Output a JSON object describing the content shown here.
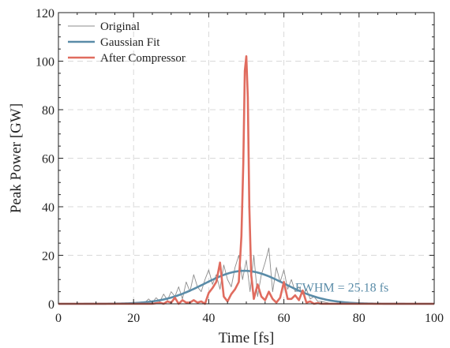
{
  "chart_data": {
    "type": "line",
    "xlabel": "Time [fs]",
    "ylabel": "Peak Power [GW]",
    "xlim": [
      0,
      100
    ],
    "ylim": [
      0,
      120
    ],
    "xticks": [
      "0",
      "20",
      "40",
      "60",
      "80",
      "100"
    ],
    "yticks": [
      "0",
      "20",
      "40",
      "60",
      "80",
      "100",
      "120"
    ],
    "grid": true,
    "legend_position": "top-left",
    "annotation": {
      "text": "FWHM = 25.18 fs",
      "x": 63,
      "y": 5,
      "color": "#5a8ca8"
    },
    "series": [
      {
        "name": "Original",
        "color": "#8c8c8c",
        "style": "thin",
        "x": [
          0,
          20,
          22,
          23,
          24,
          25,
          26,
          27,
          28,
          29,
          30,
          31,
          32,
          33,
          34,
          35,
          36,
          37,
          38,
          39,
          40,
          41,
          42,
          43,
          44,
          45,
          46,
          47,
          48,
          49,
          50,
          51,
          52,
          53,
          54,
          55,
          56,
          57,
          58,
          59,
          60,
          61,
          62,
          63,
          64,
          65,
          66,
          67,
          68,
          69,
          70,
          72,
          75,
          100
        ],
        "y": [
          0,
          0,
          0.2,
          0.5,
          2,
          0.5,
          2.5,
          1,
          4,
          1.5,
          5,
          3,
          7,
          2,
          9,
          5,
          12,
          7,
          5,
          10,
          14,
          8,
          12,
          6,
          16,
          10,
          7,
          15,
          20,
          10,
          18,
          5,
          20,
          3,
          12,
          17,
          23,
          5,
          15,
          9,
          14,
          6,
          10,
          5,
          7,
          4,
          6,
          2,
          3,
          1,
          1,
          0.3,
          0,
          0
        ]
      },
      {
        "name": "Gaussian Fit",
        "color": "#5a8ca8",
        "style": "thick",
        "gaussian": {
          "amplitude": 13.6,
          "center": 49.5,
          "fwhm": 25.18
        }
      },
      {
        "name": "After Compressor",
        "color": "#e06c5f",
        "style": "thick",
        "x": [
          0,
          25,
          27,
          28,
          29,
          30,
          31,
          32,
          33,
          34,
          35,
          36,
          37,
          38,
          39,
          40,
          41,
          42,
          43,
          44,
          45,
          46,
          47,
          48,
          48.7,
          49.2,
          49.6,
          50,
          50.4,
          50.8,
          51.3,
          52,
          53,
          54,
          55,
          56,
          57,
          58,
          59,
          60,
          61,
          62,
          63,
          64,
          65,
          66,
          67,
          68,
          69,
          70,
          72,
          100
        ],
        "y": [
          0,
          0,
          0.5,
          0,
          1,
          0.5,
          2.5,
          0,
          1.5,
          0.5,
          0.5,
          1.5,
          0.5,
          1,
          0,
          4.5,
          6.5,
          9,
          17,
          3,
          1,
          4,
          6,
          9,
          28,
          58,
          96,
          102,
          85,
          40,
          12,
          2,
          8,
          3,
          1.5,
          5,
          2,
          0.5,
          2.5,
          9,
          2,
          2,
          3.5,
          1.5,
          5.5,
          0.5,
          1,
          0,
          0.3,
          0,
          0,
          0
        ]
      }
    ]
  }
}
